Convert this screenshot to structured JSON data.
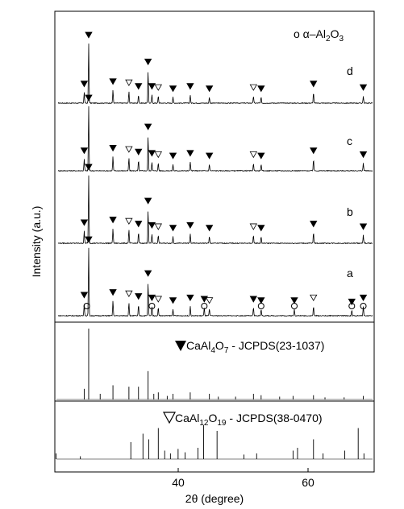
{
  "figure": {
    "legend_alpha": "o α–Al",
    "legend_alpha_sub1": "2",
    "legend_alpha_mid": "O",
    "legend_alpha_sub2": "3",
    "ylabel": "Intensity (a.u.)",
    "xlabel": "2θ (degree)",
    "ref1_label": "CaAl",
    "ref1_sub1": "4",
    "ref1_mid": "O",
    "ref1_sub2": "7",
    "ref1_tail": " - JCPDS(23-1037)",
    "ref2_label": "CaAl",
    "ref2_sub1": "12",
    "ref2_mid": "O",
    "ref2_sub2": "19",
    "ref2_tail": " - JCPDS(38-0470)"
  },
  "colors": {
    "line": "#000000",
    "background": "#ffffff"
  },
  "chart_data": {
    "type": "line",
    "xlabel": "2θ (degree)",
    "ylabel": "Intensity (a.u.)",
    "xlim": [
      20,
      70
    ],
    "xticks": [
      40,
      60
    ],
    "xtick_labels": [
      "40",
      "60"
    ],
    "grid": false,
    "series": [
      {
        "name": "d",
        "peaks": [
          [
            25.3,
            100
          ],
          [
            24.6,
            18
          ],
          [
            29.1,
            22
          ],
          [
            31.6,
            20
          ],
          [
            33.1,
            14
          ],
          [
            34.6,
            55
          ],
          [
            35.2,
            14
          ],
          [
            36.2,
            12
          ],
          [
            38.5,
            10
          ],
          [
            41.2,
            14
          ],
          [
            44.2,
            10
          ],
          [
            51.1,
            12
          ],
          [
            52.3,
            10
          ],
          [
            60.5,
            18
          ],
          [
            68.3,
            12
          ]
        ]
      },
      {
        "name": "c",
        "peaks": [
          [
            25.3,
            100
          ],
          [
            24.6,
            18
          ],
          [
            29.1,
            22
          ],
          [
            31.6,
            20
          ],
          [
            33.1,
            16
          ],
          [
            34.6,
            55
          ],
          [
            35.2,
            14
          ],
          [
            36.2,
            12
          ],
          [
            38.5,
            10
          ],
          [
            41.2,
            14
          ],
          [
            44.2,
            10
          ],
          [
            51.1,
            12
          ],
          [
            52.3,
            10
          ],
          [
            60.5,
            18
          ],
          [
            68.3,
            12
          ]
        ]
      },
      {
        "name": "b",
        "peaks": [
          [
            25.3,
            100
          ],
          [
            24.6,
            18
          ],
          [
            29.1,
            22
          ],
          [
            31.6,
            20
          ],
          [
            33.1,
            16
          ],
          [
            34.6,
            50
          ],
          [
            35.2,
            14
          ],
          [
            36.2,
            12
          ],
          [
            38.5,
            10
          ],
          [
            41.2,
            14
          ],
          [
            44.2,
            10
          ],
          [
            51.1,
            12
          ],
          [
            52.3,
            10
          ],
          [
            60.5,
            16
          ],
          [
            68.3,
            12
          ]
        ]
      },
      {
        "name": "a",
        "peaks": [
          [
            25.3,
            100
          ],
          [
            24.6,
            18
          ],
          [
            29.1,
            22
          ],
          [
            31.6,
            20
          ],
          [
            33.1,
            16
          ],
          [
            34.6,
            50
          ],
          [
            35.2,
            14
          ],
          [
            36.2,
            12
          ],
          [
            38.5,
            10
          ],
          [
            41.2,
            14
          ],
          [
            43.4,
            12
          ],
          [
            44.2,
            10
          ],
          [
            51.1,
            12
          ],
          [
            52.3,
            10
          ],
          [
            57.5,
            10
          ],
          [
            60.5,
            14
          ],
          [
            66.5,
            8
          ],
          [
            68.3,
            14
          ]
        ]
      },
      {
        "name": "CaAl4O7 - JCPDS(23-1037)",
        "sticks": [
          [
            24.6,
            15
          ],
          [
            25.3,
            100
          ],
          [
            27.1,
            8
          ],
          [
            29.1,
            20
          ],
          [
            31.6,
            18
          ],
          [
            33.1,
            18
          ],
          [
            34.6,
            40
          ],
          [
            35.5,
            8
          ],
          [
            36.2,
            10
          ],
          [
            37.6,
            5
          ],
          [
            38.5,
            8
          ],
          [
            41.2,
            10
          ],
          [
            44.2,
            8
          ],
          [
            45.6,
            4
          ],
          [
            48.3,
            4
          ],
          [
            51.1,
            8
          ],
          [
            52.3,
            6
          ],
          [
            55.2,
            4
          ],
          [
            57.3,
            5
          ],
          [
            60.5,
            6
          ],
          [
            62.3,
            3
          ],
          [
            65.3,
            3
          ],
          [
            68.3,
            5
          ]
        ]
      },
      {
        "name": "CaAl12O19 - JCPDS(38-0470)",
        "sticks": [
          [
            20.2,
            10
          ],
          [
            24.0,
            5
          ],
          [
            31.9,
            30
          ],
          [
            33.8,
            45
          ],
          [
            34.7,
            35
          ],
          [
            36.2,
            55
          ],
          [
            37.2,
            15
          ],
          [
            38.1,
            10
          ],
          [
            39.3,
            18
          ],
          [
            40.4,
            12
          ],
          [
            42.4,
            20
          ],
          [
            43.3,
            60
          ],
          [
            45.4,
            50
          ],
          [
            49.6,
            8
          ],
          [
            51.6,
            10
          ],
          [
            57.3,
            15
          ],
          [
            58.0,
            20
          ],
          [
            60.5,
            35
          ],
          [
            62.0,
            10
          ],
          [
            65.4,
            15
          ],
          [
            67.5,
            55
          ],
          [
            68.4,
            10
          ]
        ]
      }
    ],
    "series_labels": [
      "d",
      "c",
      "b",
      "a"
    ],
    "annotations": [
      "▼",
      "▽",
      "o"
    ]
  }
}
